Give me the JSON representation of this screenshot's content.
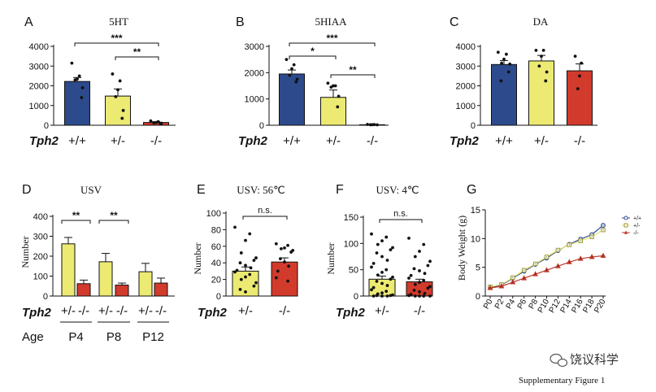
{
  "colors": {
    "wt": "#2d4a8c",
    "het": "#ecea72",
    "ko": "#d23a2c"
  },
  "genotype_label": "Tph2",
  "age_label": "Age",
  "chart_data": [
    {
      "id": "A",
      "panel_letter": "A",
      "type": "bar",
      "title": "5HT",
      "categories": [
        "+/+",
        "+/-",
        "-/-"
      ],
      "values": [
        2220,
        1480,
        140
      ],
      "errors": [
        200,
        360,
        40
      ],
      "points": [
        [
          3150,
          2500,
          2350,
          2300,
          1900,
          1400
        ],
        [
          2600,
          2250,
          1800,
          1450,
          750,
          350
        ],
        [
          220,
          180,
          140,
          120,
          100,
          90
        ]
      ],
      "ylim": [
        0,
        4000
      ],
      "yticks": [
        0,
        1000,
        2000,
        3000,
        4000
      ],
      "significance": [
        {
          "a": 0,
          "b": 2,
          "label": "***"
        },
        {
          "a": 1,
          "b": 2,
          "label": "**"
        }
      ]
    },
    {
      "id": "B",
      "panel_letter": "B",
      "type": "bar",
      "title": "5HIAA",
      "categories": [
        "+/+",
        "+/-",
        "-/-"
      ],
      "values": [
        1950,
        1060,
        20
      ],
      "errors": [
        150,
        280,
        10
      ],
      "points": [
        [
          2500,
          2300,
          2150,
          1900,
          1750,
          1650
        ],
        [
          1600,
          1500,
          1500,
          1450,
          1100,
          700
        ],
        [
          30,
          25,
          20,
          18,
          15
        ]
      ],
      "ylim": [
        0,
        3000
      ],
      "yticks": [
        0,
        1000,
        2000,
        3000
      ],
      "significance": [
        {
          "a": 0,
          "b": 2,
          "label": "***"
        },
        {
          "a": 0,
          "b": 1,
          "label": "*"
        },
        {
          "a": 1,
          "b": 2,
          "label": "**"
        }
      ]
    },
    {
      "id": "C",
      "panel_letter": "C",
      "type": "bar",
      "title": "DA",
      "categories": [
        "+/+",
        "+/-",
        "-/-"
      ],
      "values": [
        3080,
        3260,
        2760
      ],
      "errors": [
        200,
        280,
        350
      ],
      "points": [
        [
          3700,
          3600,
          3350,
          3150,
          3100,
          2700,
          2250
        ],
        [
          3800,
          3800,
          3500,
          3000,
          2700,
          2250
        ],
        [
          3500,
          3150,
          2500,
          1850
        ]
      ],
      "ylim": [
        0,
        4000
      ],
      "yticks": [
        0,
        1000,
        2000,
        3000,
        4000
      ],
      "significance": []
    },
    {
      "id": "D",
      "panel_letter": "D",
      "type": "bar",
      "title": "USV",
      "ylabel": "Number",
      "categories": [
        "+/-",
        "-/-",
        "+/-",
        "-/-",
        "+/-",
        "-/-"
      ],
      "values": [
        262,
        62,
        172,
        55,
        122,
        65
      ],
      "errors": [
        32,
        18,
        42,
        10,
        42,
        25
      ],
      "group_of": [
        "het",
        "ko",
        "het",
        "ko",
        "het",
        "ko"
      ],
      "ages": [
        "P4",
        "P8",
        "P12"
      ],
      "ylim": [
        0,
        400
      ],
      "yticks": [
        0,
        100,
        200,
        300,
        400
      ],
      "significance": [
        {
          "a": 0,
          "b": 1,
          "label": "**"
        },
        {
          "a": 2,
          "b": 3,
          "label": "**"
        }
      ]
    },
    {
      "id": "E",
      "panel_letter": "E",
      "type": "bar",
      "title": "USV: 56℃",
      "ylabel": "Number",
      "categories": [
        "+/-",
        "-/-"
      ],
      "values": [
        30,
        41
      ],
      "errors": [
        5,
        5
      ],
      "points": [
        [
          83,
          75,
          67,
          52,
          46,
          43,
          40,
          37,
          34,
          31,
          29,
          26,
          23,
          20,
          16,
          12,
          8,
          5
        ],
        [
          63,
          61,
          58,
          57,
          55,
          53,
          45,
          41,
          36,
          30,
          22,
          18
        ]
      ],
      "ylim": [
        0,
        100
      ],
      "yticks": [
        0,
        20,
        40,
        60,
        80,
        100
      ],
      "significance": [
        {
          "a": 0,
          "b": 1,
          "label": "n.s."
        }
      ]
    },
    {
      "id": "F",
      "panel_letter": "F",
      "type": "bar",
      "title": "USV: 4℃",
      "ylabel": "Number",
      "categories": [
        "+/-",
        "-/-"
      ],
      "values": [
        32,
        27
      ],
      "errors": [
        6,
        5
      ],
      "points": [
        [
          118,
          112,
          105,
          98,
          92,
          88,
          82,
          75,
          68,
          62,
          55,
          50,
          45,
          40,
          36,
          32,
          28,
          24,
          20,
          16,
          12,
          9,
          6,
          4,
          2,
          1,
          1,
          0,
          0,
          0
        ],
        [
          110,
          98,
          85,
          75,
          66,
          58,
          52,
          48,
          43,
          39,
          34,
          30,
          26,
          22,
          18,
          15,
          11,
          8,
          5,
          3,
          1,
          0,
          0,
          0,
          0
        ]
      ],
      "ylim": [
        0,
        150
      ],
      "yticks": [
        0,
        50,
        100,
        150
      ],
      "significance": [
        {
          "a": 0,
          "b": 1,
          "label": "n.s."
        }
      ]
    },
    {
      "id": "G",
      "panel_letter": "G",
      "type": "line",
      "title": "",
      "ylabel": "Body Weight (g)",
      "x": [
        "P0",
        "P2",
        "P4",
        "P6",
        "P8",
        "P10",
        "P12",
        "P14",
        "P16",
        "P18",
        "P20"
      ],
      "ylim": [
        0,
        15
      ],
      "yticks": [
        0,
        5,
        10,
        15
      ],
      "series": [
        {
          "name": "+/+",
          "marker": "circle",
          "color": "#2d4a8c",
          "values": [
            1.5,
            1.9,
            3.1,
            4.3,
            5.5,
            6.6,
            7.9,
            9.0,
            9.9,
            10.7,
            12.3
          ]
        },
        {
          "name": "+/-",
          "marker": "square",
          "color": "#e7e46a",
          "values": [
            1.6,
            2.0,
            3.2,
            4.5,
            5.6,
            6.8,
            8.0,
            8.9,
            9.6,
            10.3,
            11.5
          ]
        },
        {
          "name": "-/-",
          "marker": "triangle",
          "color": "#c0392b",
          "values": [
            1.4,
            1.7,
            2.4,
            3.1,
            3.8,
            4.5,
            5.2,
            5.9,
            6.5,
            6.8,
            7.0
          ]
        }
      ]
    }
  ],
  "watermark": "饶议科学",
  "caption": "Supplementary Figure 1"
}
